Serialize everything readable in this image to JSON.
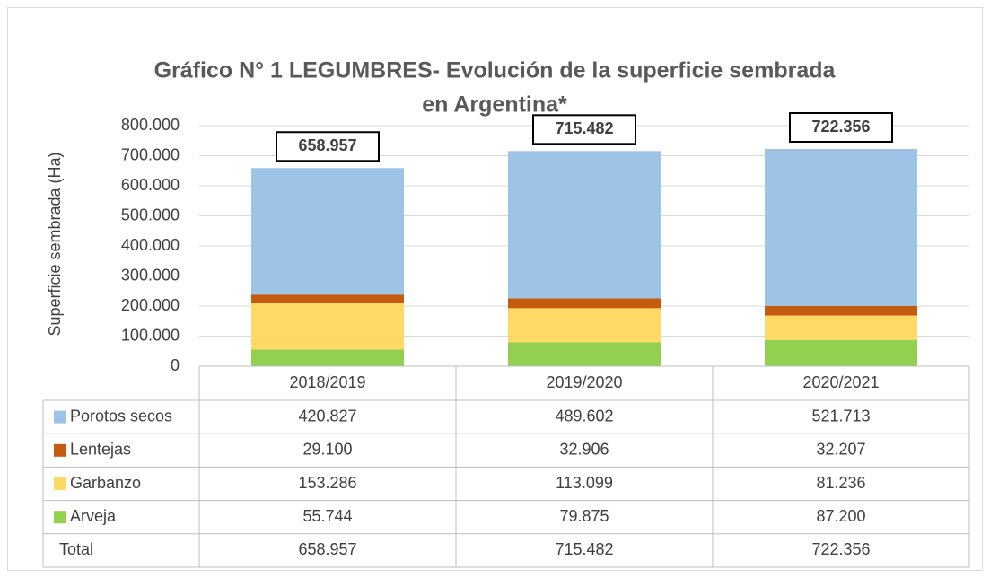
{
  "chart_data": {
    "type": "stacked_bar",
    "title": [
      "Gráfico N° 1  LEGUMBRES- Evolución de la superficie sembrada",
      "en Argentina*"
    ],
    "y_label": "Superficie sembrada (Ha)",
    "categories": [
      "2018/2019",
      "2019/2020",
      "2020/2021"
    ],
    "series": [
      {
        "name": "Arveja",
        "color": "#92d050",
        "values": [
          55744,
          79875,
          87200
        ],
        "value_labels": [
          "55.744",
          "79.875",
          "87.200"
        ]
      },
      {
        "name": "Garbanzo",
        "color": "#ffd966",
        "values": [
          153286,
          113099,
          81236
        ],
        "value_labels": [
          "153.286",
          "113.099",
          "81.236"
        ]
      },
      {
        "name": "Lentejas",
        "color": "#c55a11",
        "values": [
          29100,
          32906,
          32207
        ],
        "value_labels": [
          "29.100",
          "32.906",
          "32.207"
        ]
      },
      {
        "name": "Porotos secos",
        "color": "#9dc3e6",
        "values": [
          420827,
          489602,
          521713
        ],
        "value_labels": [
          "420.827",
          "489.602",
          "521.713"
        ]
      }
    ],
    "totals": {
      "name": "Total",
      "values": [
        658957,
        715482,
        722356
      ],
      "value_labels": [
        "658.957",
        "715.482",
        "722.356"
      ]
    },
    "ylim": [
      0,
      800000
    ],
    "yticks": [
      0,
      {
        "value": 100000,
        "label": "100.000"
      },
      {
        "value": 200000,
        "label": "200.000"
      },
      {
        "value": 300000,
        "label": "300.000"
      },
      {
        "value": 400000,
        "label": "400.000"
      },
      {
        "value": 500000,
        "label": "500.000"
      },
      {
        "value": 600000,
        "label": "600.000"
      },
      {
        "value": 700000,
        "label": "700.000"
      },
      {
        "value": 800000,
        "label": "800.000"
      }
    ],
    "grid": true
  }
}
